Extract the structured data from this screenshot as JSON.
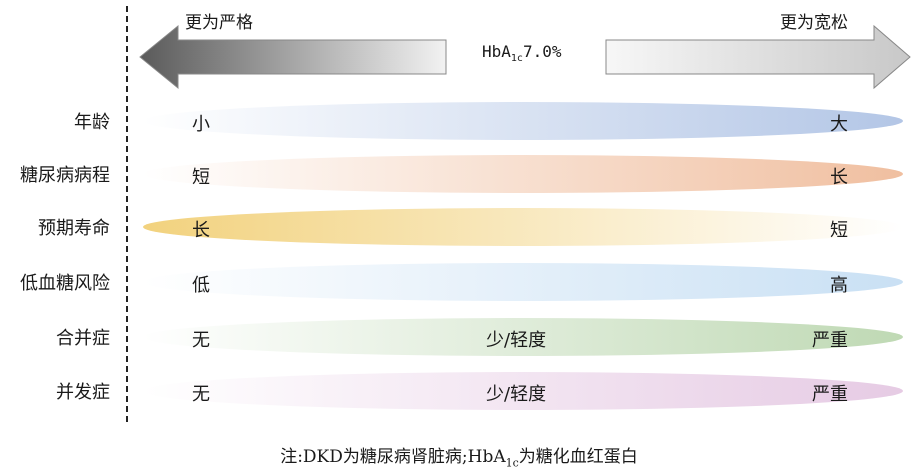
{
  "directions": {
    "stricter": "更为严格",
    "looser": "更为宽松",
    "center_label": "HbA",
    "center_sub": "1c",
    "center_value": "7.0%"
  },
  "rows": [
    {
      "label": "年龄",
      "left": "小",
      "middle": "",
      "right": "大",
      "color": "#b3c6e6",
      "direction": "increasing"
    },
    {
      "label": "糖尿病病程",
      "left": "短",
      "middle": "",
      "right": "长",
      "color": "#f0bfa0",
      "direction": "increasing"
    },
    {
      "label": "预期寿命",
      "left": "长",
      "middle": "",
      "right": "短",
      "color": "#f2d27e",
      "direction": "decreasing"
    },
    {
      "label": "低血糖风险",
      "left": "低",
      "middle": "",
      "right": "高",
      "color": "#c9e0f4",
      "direction": "increasing"
    },
    {
      "label": "合并症",
      "left": "无",
      "middle": "少/轻度",
      "right": "严重",
      "color": "#bfd9b4",
      "direction": "increasing"
    },
    {
      "label": "并发症",
      "left": "无",
      "middle": "少/轻度",
      "right": "严重",
      "color": "#e6cbe4",
      "direction": "increasing"
    }
  ],
  "note": {
    "prefix": "注:DKD为糖尿病肾脏病;HbA",
    "sub": "1c",
    "suffix": "为糖化血红蛋白"
  }
}
